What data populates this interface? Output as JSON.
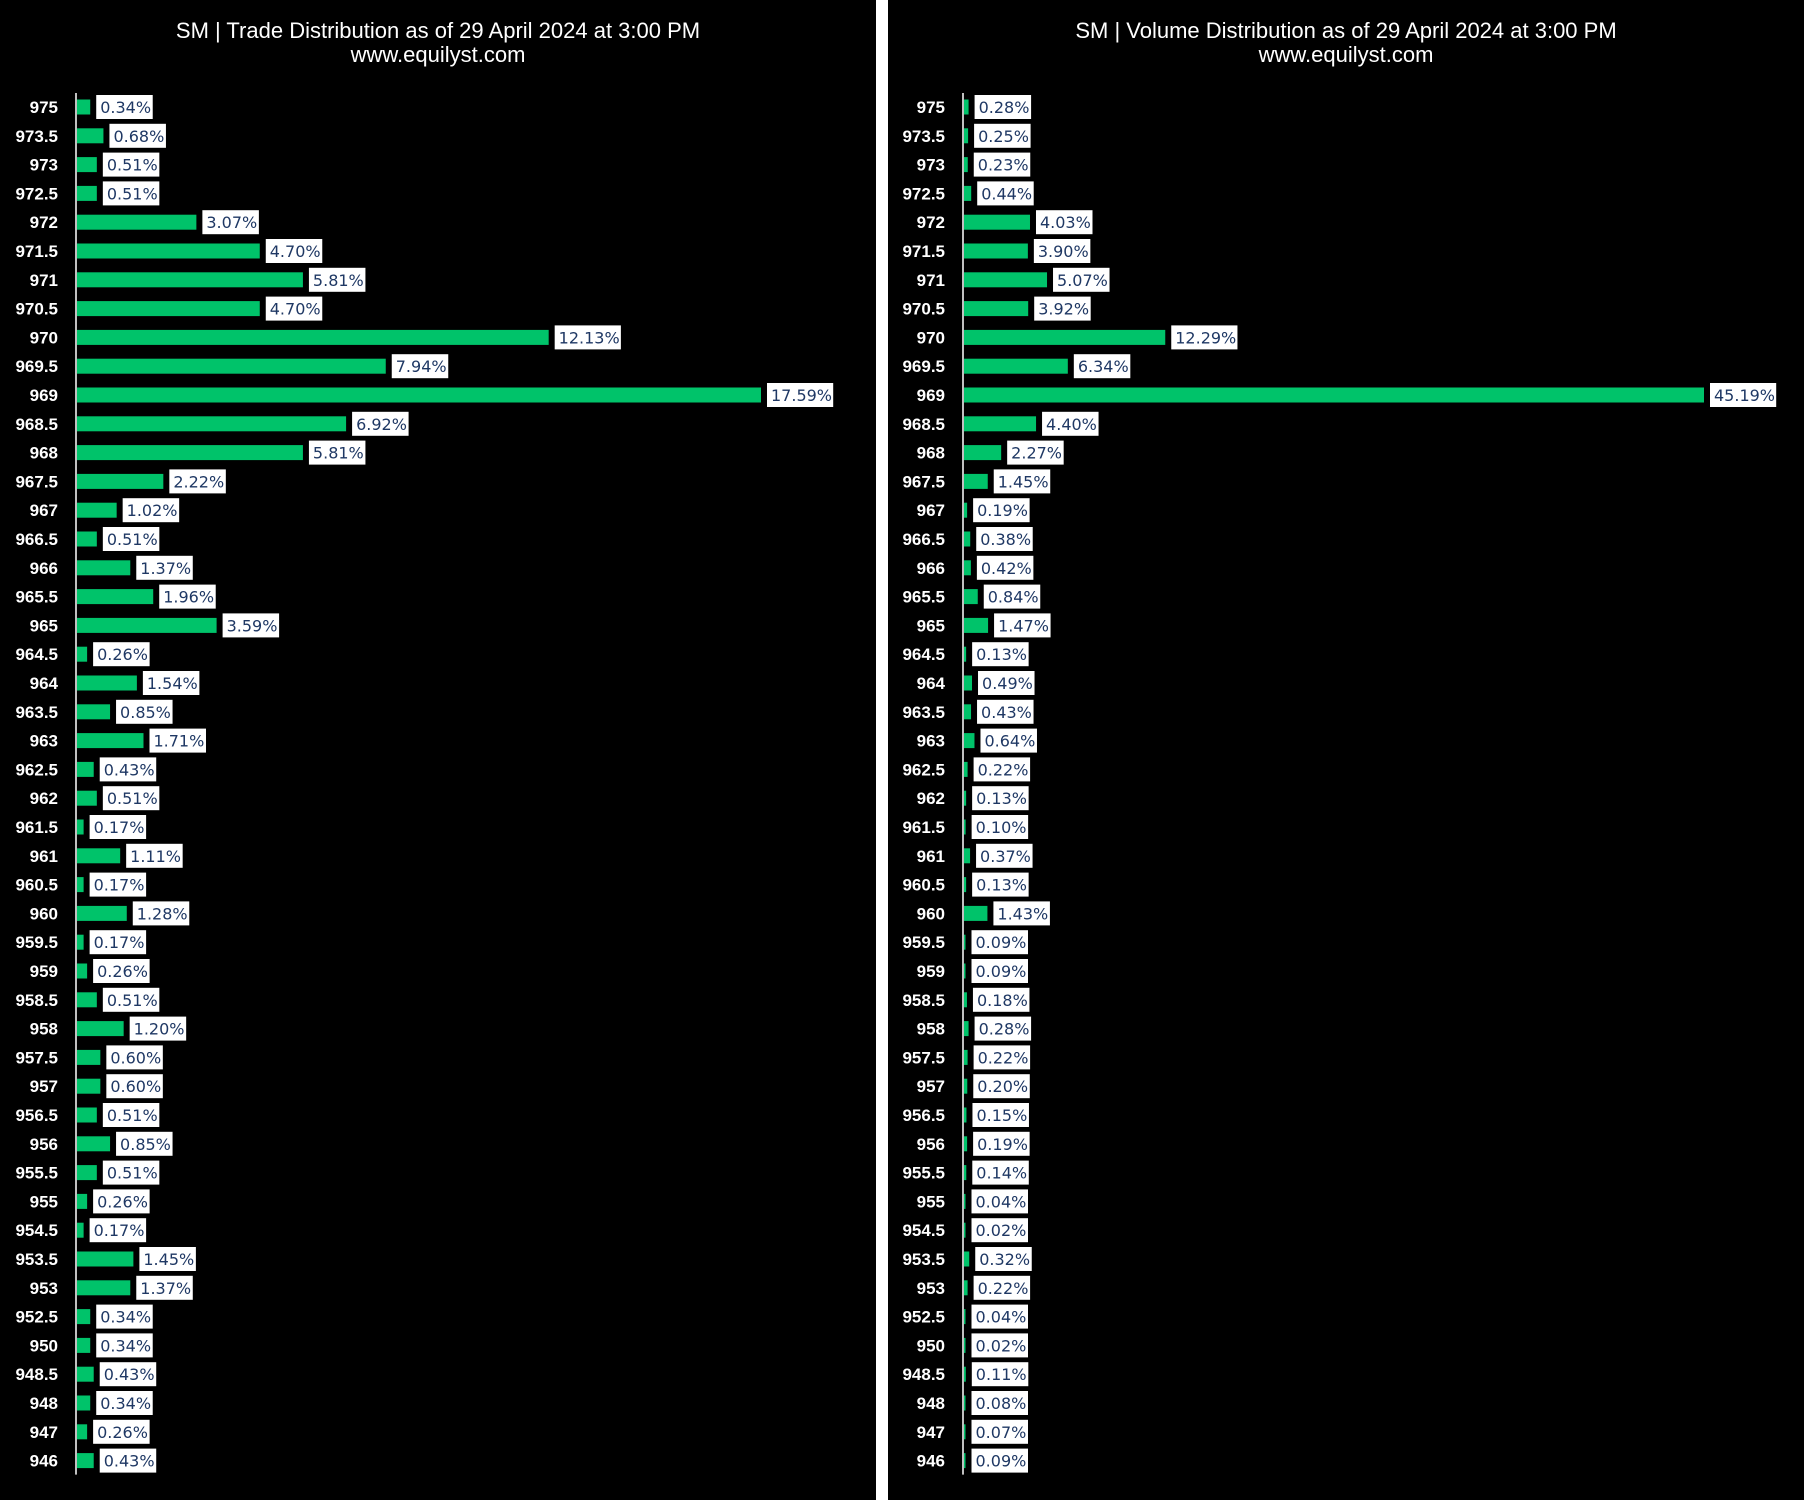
{
  "chart_data": [
    {
      "type": "bar",
      "orientation": "horizontal",
      "title": "SM | Trade Distribution as of 29 April 2024 at 3:00 PM",
      "subtitle": "www.equilyst.com",
      "categories": [
        "975",
        "973.5",
        "973",
        "972.5",
        "972",
        "971.5",
        "971",
        "970.5",
        "970",
        "969.5",
        "969",
        "968.5",
        "968",
        "967.5",
        "967",
        "966.5",
        "966",
        "965.5",
        "965",
        "964.5",
        "964",
        "963.5",
        "963",
        "962.5",
        "962",
        "961.5",
        "961",
        "960.5",
        "960",
        "959.5",
        "959",
        "958.5",
        "958",
        "957.5",
        "957",
        "956.5",
        "956",
        "955.5",
        "955",
        "954.5",
        "953.5",
        "953",
        "952.5",
        "950",
        "948.5",
        "948",
        "947",
        "946"
      ],
      "values": [
        0.34,
        0.68,
        0.51,
        0.51,
        3.07,
        4.7,
        5.81,
        4.7,
        12.13,
        7.94,
        17.59,
        6.92,
        5.81,
        2.22,
        1.02,
        0.51,
        1.37,
        1.96,
        3.59,
        0.26,
        1.54,
        0.85,
        1.71,
        0.43,
        0.51,
        0.17,
        1.11,
        0.17,
        1.28,
        0.17,
        0.26,
        0.51,
        1.2,
        0.6,
        0.6,
        0.51,
        0.85,
        0.51,
        0.26,
        0.17,
        1.45,
        1.37,
        0.34,
        0.34,
        0.43,
        0.34,
        0.26,
        0.43
      ],
      "labels": [
        "0.34%",
        "0.68%",
        "0.51%",
        "0.51%",
        "3.07%",
        "4.70%",
        "5.81%",
        "4.70%",
        "12.13%",
        "7.94%",
        "17.59%",
        "6.92%",
        "5.81%",
        "2.22%",
        "1.02%",
        "0.51%",
        "1.37%",
        "1.96%",
        "3.59%",
        "0.26%",
        "1.54%",
        "0.85%",
        "1.71%",
        "0.43%",
        "0.51%",
        "0.17%",
        "1.11%",
        "0.17%",
        "1.28%",
        "0.17%",
        "0.26%",
        "0.51%",
        "1.20%",
        "0.60%",
        "0.60%",
        "0.51%",
        "0.85%",
        "0.51%",
        "0.26%",
        "0.17%",
        "1.45%",
        "1.37%",
        "0.34%",
        "0.34%",
        "0.43%",
        "0.34%",
        "0.26%",
        "0.43%"
      ],
      "bar_color": "#00c36a",
      "background": "#000000",
      "grid": false,
      "legend": "none"
    },
    {
      "type": "bar",
      "orientation": "horizontal",
      "title": "SM | Volume Distribution as of 29 April 2024 at 3:00 PM",
      "subtitle": "www.equilyst.com",
      "categories": [
        "975",
        "973.5",
        "973",
        "972.5",
        "972",
        "971.5",
        "971",
        "970.5",
        "970",
        "969.5",
        "969",
        "968.5",
        "968",
        "967.5",
        "967",
        "966.5",
        "966",
        "965.5",
        "965",
        "964.5",
        "964",
        "963.5",
        "963",
        "962.5",
        "962",
        "961.5",
        "961",
        "960.5",
        "960",
        "959.5",
        "959",
        "958.5",
        "958",
        "957.5",
        "957",
        "956.5",
        "956",
        "955.5",
        "955",
        "954.5",
        "953.5",
        "953",
        "952.5",
        "950",
        "948.5",
        "948",
        "947",
        "946"
      ],
      "values": [
        0.28,
        0.25,
        0.23,
        0.44,
        4.03,
        3.9,
        5.07,
        3.92,
        12.29,
        6.34,
        45.19,
        4.4,
        2.27,
        1.45,
        0.19,
        0.38,
        0.42,
        0.84,
        1.47,
        0.13,
        0.49,
        0.43,
        0.64,
        0.22,
        0.13,
        0.1,
        0.37,
        0.13,
        1.43,
        0.09,
        0.09,
        0.18,
        0.28,
        0.22,
        0.2,
        0.15,
        0.19,
        0.14,
        0.04,
        0.02,
        0.32,
        0.22,
        0.04,
        0.02,
        0.11,
        0.08,
        0.07,
        0.09
      ],
      "labels": [
        "0.28%",
        "0.25%",
        "0.23%",
        "0.44%",
        "4.03%",
        "3.90%",
        "5.07%",
        "3.92%",
        "12.29%",
        "6.34%",
        "45.19%",
        "4.40%",
        "2.27%",
        "1.45%",
        "0.19%",
        "0.38%",
        "0.42%",
        "0.84%",
        "1.47%",
        "0.13%",
        "0.49%",
        "0.43%",
        "0.64%",
        "0.22%",
        "0.13%",
        "0.10%",
        "0.37%",
        "0.13%",
        "1.43%",
        "0.09%",
        "0.09%",
        "0.18%",
        "0.28%",
        "0.22%",
        "0.20%",
        "0.15%",
        "0.19%",
        "0.14%",
        "0.04%",
        "0.02%",
        "0.32%",
        "0.22%",
        "0.04%",
        "0.02%",
        "0.11%",
        "0.08%",
        "0.07%",
        "0.09%"
      ],
      "bar_color": "#00c36a",
      "background": "#000000",
      "grid": false,
      "legend": "none"
    }
  ]
}
